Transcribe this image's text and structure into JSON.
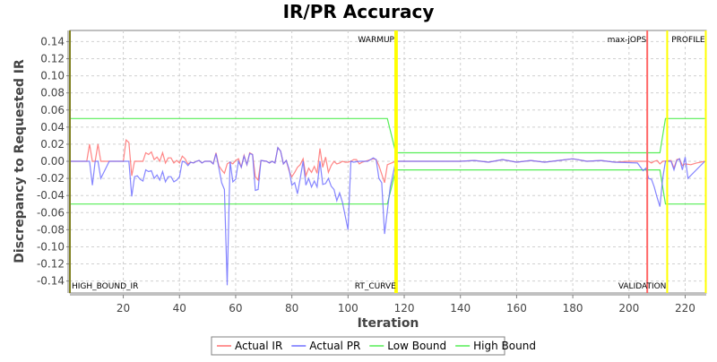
{
  "chart_data": {
    "type": "line",
    "title": "IR/PR Accuracy",
    "xlabel": "Iteration",
    "ylabel": "Discrepancy to Requested IR",
    "xlim": [
      1,
      227.5
    ],
    "ylim": [
      -0.154,
      0.153
    ],
    "xticks": [
      20,
      40,
      60,
      80,
      100,
      120,
      140,
      160,
      180,
      200,
      220
    ],
    "xtick_labels": [
      "20",
      "40",
      "60",
      "80",
      "100",
      "120",
      "140",
      "160",
      "180",
      "200",
      "220"
    ],
    "yticks": [
      -0.14,
      -0.12,
      -0.1,
      -0.08,
      -0.06,
      -0.04,
      -0.02,
      0,
      0.02,
      0.04,
      0.06,
      0.08,
      0.1,
      0.12,
      0.14
    ],
    "ytick_labels": [
      "-0.14",
      "-0.12",
      "-0.10",
      "-0.08",
      "-0.06",
      "-0.04",
      "-0.02",
      "0.00",
      "0.02",
      "0.04",
      "0.06",
      "0.08",
      "0.10",
      "0.12",
      "0.14"
    ],
    "grid": true,
    "legend_position": "bottom",
    "series": [
      {
        "name": "Actual IR",
        "color": "#ff7070",
        "points": [
          [
            1,
            0
          ],
          [
            7,
            0
          ],
          [
            8,
            0.02
          ],
          [
            9,
            0
          ],
          [
            10,
            0
          ],
          [
            11,
            0.02
          ],
          [
            12,
            0
          ],
          [
            20,
            0
          ],
          [
            21,
            0.025
          ],
          [
            22,
            0.022
          ],
          [
            23,
            -0.017
          ],
          [
            24,
            0
          ],
          [
            27,
            0
          ],
          [
            28,
            0.01
          ],
          [
            29,
            0.008
          ],
          [
            30,
            0.011
          ],
          [
            31,
            0.002
          ],
          [
            32,
            0.005
          ],
          [
            33,
            0
          ],
          [
            34,
            0.01
          ],
          [
            35,
            -0.002
          ],
          [
            36,
            0.004
          ],
          [
            37,
            0.004
          ],
          [
            38,
            -0.002
          ],
          [
            39,
            0.001
          ],
          [
            40,
            -0.002
          ],
          [
            41,
            0.006
          ],
          [
            42,
            0.003
          ],
          [
            43,
            -0.003
          ],
          [
            44,
            -0.001
          ],
          [
            45,
            -0.002
          ],
          [
            46,
            0
          ],
          [
            47,
            0.001
          ],
          [
            48,
            -0.002
          ],
          [
            49,
            0
          ],
          [
            51,
            0
          ],
          [
            52,
            -0.003
          ],
          [
            53,
            0.01
          ],
          [
            54,
            -0.005
          ],
          [
            55,
            -0.01
          ],
          [
            56,
            -0.014
          ],
          [
            57,
            -0.003
          ],
          [
            58,
            -0.001
          ],
          [
            59,
            -0.003
          ],
          [
            60,
            0.001
          ],
          [
            61,
            0.003
          ],
          [
            62,
            -0.007
          ],
          [
            63,
            0.007
          ],
          [
            64,
            -0.004
          ],
          [
            65,
            0.01
          ],
          [
            66,
            0.008
          ],
          [
            67,
            -0.018
          ],
          [
            68,
            -0.022
          ],
          [
            69,
            0.001
          ],
          [
            71,
            0
          ],
          [
            72,
            -0.002
          ],
          [
            73,
            0
          ],
          [
            74,
            -0.002
          ],
          [
            75,
            0.016
          ],
          [
            76,
            0.012
          ],
          [
            77,
            -0.003
          ],
          [
            78,
            0.001
          ],
          [
            79,
            -0.011
          ],
          [
            80,
            -0.018
          ],
          [
            81,
            -0.013
          ],
          [
            82,
            -0.007
          ],
          [
            83,
            -0.004
          ],
          [
            84,
            0.003
          ],
          [
            85,
            -0.017
          ],
          [
            86,
            -0.008
          ],
          [
            87,
            -0.013
          ],
          [
            88,
            -0.006
          ],
          [
            89,
            -0.014
          ],
          [
            90,
            0.015
          ],
          [
            91,
            -0.007
          ],
          [
            92,
            0.005
          ],
          [
            93,
            -0.013
          ],
          [
            94,
            -0.005
          ],
          [
            95,
            0
          ],
          [
            96,
            -0.003
          ],
          [
            97,
            -0.002
          ],
          [
            98,
            0
          ],
          [
            99,
            -0.001
          ],
          [
            100,
            -0.001
          ],
          [
            101,
            0
          ],
          [
            102,
            0.002
          ],
          [
            103,
            0.002
          ],
          [
            104,
            -0.003
          ],
          [
            105,
            -0.001
          ],
          [
            109,
            0.003
          ],
          [
            110,
            0.002
          ],
          [
            111,
            -0.005
          ],
          [
            113,
            -0.025
          ],
          [
            114,
            -0.004
          ],
          [
            117,
            0
          ],
          [
            140,
            0
          ],
          [
            145,
            0.001
          ],
          [
            150,
            -0.001
          ],
          [
            155,
            0.002
          ],
          [
            160,
            -0.001
          ],
          [
            165,
            0.001
          ],
          [
            170,
            -0.001
          ],
          [
            175,
            0.001
          ],
          [
            180,
            0.003
          ],
          [
            185,
            0
          ],
          [
            190,
            0.001
          ],
          [
            195,
            -0.001
          ],
          [
            200,
            0
          ],
          [
            206,
            0
          ],
          [
            207,
            0
          ],
          [
            208,
            -0.002
          ],
          [
            209,
            0
          ],
          [
            210,
            0.001
          ],
          [
            211,
            -0.003
          ],
          [
            212,
            0
          ],
          [
            215,
            0.001
          ],
          [
            216,
            -0.008
          ],
          [
            217,
            0.002
          ],
          [
            218,
            0.003
          ],
          [
            219,
            -0.005
          ],
          [
            220,
            -0.003
          ],
          [
            222,
            -0.004
          ],
          [
            224,
            -0.002
          ],
          [
            227,
            0
          ]
        ]
      },
      {
        "name": "Actual PR",
        "color": "#7070ff",
        "points": [
          [
            1,
            0
          ],
          [
            8,
            0
          ],
          [
            9,
            -0.028
          ],
          [
            10,
            0
          ],
          [
            11,
            0
          ],
          [
            12,
            -0.02
          ],
          [
            15,
            0
          ],
          [
            22,
            0
          ],
          [
            23,
            -0.041
          ],
          [
            24,
            -0.018
          ],
          [
            25,
            -0.017
          ],
          [
            26,
            -0.021
          ],
          [
            27,
            -0.023
          ],
          [
            28,
            -0.01
          ],
          [
            29,
            -0.012
          ],
          [
            30,
            -0.011
          ],
          [
            31,
            -0.02
          ],
          [
            32,
            -0.016
          ],
          [
            33,
            -0.022
          ],
          [
            34,
            -0.012
          ],
          [
            35,
            -0.024
          ],
          [
            36,
            -0.018
          ],
          [
            37,
            -0.018
          ],
          [
            38,
            -0.024
          ],
          [
            39,
            -0.022
          ],
          [
            40,
            -0.018
          ],
          [
            41,
            0
          ],
          [
            42,
            -0.001
          ],
          [
            43,
            -0.005
          ],
          [
            44,
            -0.001
          ],
          [
            45,
            -0.002
          ],
          [
            46,
            0
          ],
          [
            47,
            0.001
          ],
          [
            48,
            -0.002
          ],
          [
            49,
            0
          ],
          [
            51,
            0
          ],
          [
            52,
            -0.003
          ],
          [
            53,
            0.009
          ],
          [
            54,
            -0.007
          ],
          [
            55,
            -0.025
          ],
          [
            56,
            -0.033
          ],
          [
            57,
            -0.145
          ],
          [
            58,
            0
          ],
          [
            59,
            -0.024
          ],
          [
            60,
            -0.021
          ],
          [
            61,
            0
          ],
          [
            62,
            -0.007
          ],
          [
            63,
            0.006
          ],
          [
            64,
            -0.004
          ],
          [
            65,
            0.009
          ],
          [
            66,
            0.008
          ],
          [
            67,
            -0.034
          ],
          [
            68,
            -0.033
          ],
          [
            69,
            0.001
          ],
          [
            71,
            0
          ],
          [
            72,
            -0.002
          ],
          [
            73,
            0
          ],
          [
            74,
            -0.002
          ],
          [
            75,
            0.016
          ],
          [
            76,
            0.012
          ],
          [
            77,
            -0.003
          ],
          [
            78,
            0.001
          ],
          [
            79,
            -0.009
          ],
          [
            80,
            -0.028
          ],
          [
            81,
            -0.025
          ],
          [
            82,
            -0.038
          ],
          [
            83,
            -0.02
          ],
          [
            84,
            0
          ],
          [
            85,
            -0.028
          ],
          [
            86,
            -0.02
          ],
          [
            87,
            -0.03
          ],
          [
            88,
            -0.023
          ],
          [
            89,
            -0.03
          ],
          [
            90,
            0
          ],
          [
            91,
            -0.027
          ],
          [
            92,
            -0.026
          ],
          [
            93,
            -0.02
          ],
          [
            94,
            -0.029
          ],
          [
            95,
            -0.033
          ],
          [
            96,
            -0.046
          ],
          [
            97,
            -0.037
          ],
          [
            98,
            -0.048
          ],
          [
            100,
            -0.08
          ],
          [
            101,
            0
          ],
          [
            102,
            -0.001
          ],
          [
            104,
            0
          ],
          [
            107,
            0
          ],
          [
            109,
            0.004
          ],
          [
            110,
            0.002
          ],
          [
            111,
            -0.02
          ],
          [
            112,
            -0.025
          ],
          [
            113,
            -0.085
          ],
          [
            115,
            -0.03
          ],
          [
            117,
            0
          ],
          [
            140,
            0
          ],
          [
            145,
            0.001
          ],
          [
            150,
            -0.001
          ],
          [
            155,
            0.002
          ],
          [
            160,
            -0.001
          ],
          [
            165,
            0.001
          ],
          [
            170,
            -0.001
          ],
          [
            175,
            0.001
          ],
          [
            180,
            0.003
          ],
          [
            185,
            0
          ],
          [
            190,
            0.001
          ],
          [
            195,
            -0.001
          ],
          [
            203,
            -0.002
          ],
          [
            205,
            -0.011
          ],
          [
            206,
            -0.008
          ],
          [
            207,
            -0.02
          ],
          [
            208,
            -0.021
          ],
          [
            209,
            -0.03
          ],
          [
            210,
            -0.042
          ],
          [
            211,
            -0.053
          ],
          [
            212,
            -0.02
          ],
          [
            213,
            0
          ],
          [
            215,
            0
          ],
          [
            216,
            -0.01
          ],
          [
            217,
            0.001
          ],
          [
            218,
            0.003
          ],
          [
            219,
            -0.01
          ],
          [
            220,
            0.005
          ],
          [
            221,
            -0.02
          ],
          [
            227,
            0
          ]
        ]
      },
      {
        "name": "Low Bound",
        "color": "#55ee55",
        "points": [
          [
            1,
            -0.05
          ],
          [
            114,
            -0.05
          ],
          [
            117,
            -0.01
          ],
          [
            211,
            -0.01
          ],
          [
            213,
            -0.05
          ],
          [
            227.5,
            -0.05
          ]
        ]
      },
      {
        "name": "High Bound",
        "color": "#55ee55",
        "points": [
          [
            1,
            0.05
          ],
          [
            114,
            0.05
          ],
          [
            117,
            0.01
          ],
          [
            211,
            0.01
          ],
          [
            213,
            0.05
          ],
          [
            227.5,
            0.05
          ]
        ]
      }
    ],
    "markers": [
      {
        "x": 1,
        "label": "HIGH_BOUND_IR",
        "color": "#808020",
        "label_anchor": "bottom-right"
      },
      {
        "x": 116.8,
        "label": "WARMUP",
        "color": "#ffff00",
        "label_anchor": "top-left"
      },
      {
        "x": 117.4,
        "label": "RT_CURVE",
        "color": "#ffff00",
        "label_anchor": "bottom-left"
      },
      {
        "x": 206.5,
        "label": "max-jOPS",
        "color": "#ff6666",
        "label_anchor": "top-left"
      },
      {
        "x": 213.6,
        "label": "VALIDATION",
        "color": "#ffff00",
        "label_anchor": "bottom-left"
      },
      {
        "x": 227.5,
        "label": "PROFILE",
        "color": "#ffff00",
        "label_anchor": "top-left"
      }
    ]
  }
}
